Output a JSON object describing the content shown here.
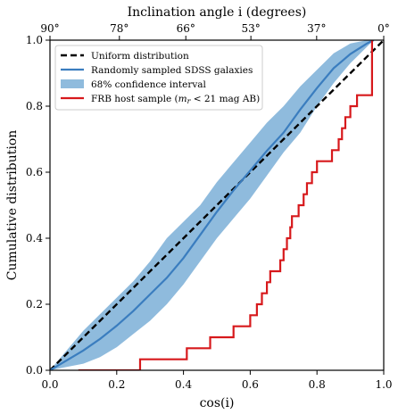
{
  "chart_data": {
    "type": "line",
    "xlabel": "cos(i)",
    "ylabel": "Cumulative distribution",
    "top_axis_label": "Inclination angle i (degrees)",
    "xlim": [
      0,
      1
    ],
    "ylim": [
      0,
      1
    ],
    "x_ticks": [
      0.0,
      0.2,
      0.4,
      0.6,
      0.8,
      1.0
    ],
    "x_tick_labels": [
      "0.0",
      "0.2",
      "0.4",
      "0.6",
      "0.8",
      "1.0"
    ],
    "y_ticks": [
      0.0,
      0.2,
      0.4,
      0.6,
      0.8,
      1.0
    ],
    "y_tick_labels": [
      "0.0",
      "0.2",
      "0.4",
      "0.6",
      "0.8",
      "1.0"
    ],
    "top_ticks": [
      {
        "cos": 0.0,
        "label": "90°"
      },
      {
        "cos": 0.208,
        "label": "78°"
      },
      {
        "cos": 0.407,
        "label": "66°"
      },
      {
        "cos": 0.602,
        "label": "53°"
      },
      {
        "cos": 0.799,
        "label": "37°"
      },
      {
        "cos": 1.0,
        "label": "0°"
      }
    ],
    "grid": false,
    "legend_position": "top-left",
    "series": [
      {
        "name": "Uniform distribution",
        "kind": "dashed-line",
        "color": "#000000",
        "x": [
          0,
          1
        ],
        "y": [
          0,
          1
        ]
      },
      {
        "name": "Randomly sampled SDSS galaxies",
        "kind": "line",
        "color": "#3a7dbf",
        "x": [
          0.0,
          0.05,
          0.1,
          0.15,
          0.2,
          0.25,
          0.3,
          0.35,
          0.4,
          0.45,
          0.5,
          0.55,
          0.6,
          0.65,
          0.7,
          0.75,
          0.8,
          0.85,
          0.9,
          0.95,
          0.97
        ],
        "y": [
          0.0,
          0.03,
          0.06,
          0.095,
          0.135,
          0.18,
          0.23,
          0.28,
          0.34,
          0.41,
          0.48,
          0.545,
          0.605,
          0.665,
          0.72,
          0.79,
          0.855,
          0.915,
          0.958,
          0.99,
          1.0
        ]
      },
      {
        "name": "68% confidence interval",
        "kind": "band",
        "color": "#8fbbdd",
        "x": [
          0.0,
          0.05,
          0.1,
          0.15,
          0.2,
          0.25,
          0.3,
          0.35,
          0.4,
          0.45,
          0.5,
          0.55,
          0.6,
          0.65,
          0.7,
          0.75,
          0.8,
          0.85,
          0.9,
          0.95,
          0.97
        ],
        "lower": [
          0.0,
          0.01,
          0.02,
          0.04,
          0.07,
          0.11,
          0.15,
          0.2,
          0.26,
          0.33,
          0.4,
          0.46,
          0.52,
          0.59,
          0.66,
          0.72,
          0.8,
          0.87,
          0.93,
          0.98,
          1.0
        ],
        "upper": [
          0.0,
          0.06,
          0.12,
          0.17,
          0.22,
          0.27,
          0.33,
          0.4,
          0.45,
          0.5,
          0.57,
          0.63,
          0.69,
          0.75,
          0.8,
          0.86,
          0.91,
          0.96,
          0.99,
          1.0,
          1.0
        ]
      },
      {
        "name": "FRB host sample (m_r < 21 mag AB)",
        "kind": "step",
        "color": "#d7191c",
        "x": [
          0.085,
          0.27,
          0.41,
          0.48,
          0.55,
          0.6,
          0.62,
          0.635,
          0.65,
          0.66,
          0.69,
          0.7,
          0.71,
          0.72,
          0.725,
          0.745,
          0.76,
          0.77,
          0.785,
          0.8,
          0.845,
          0.865,
          0.875,
          0.885,
          0.9,
          0.92,
          0.965
        ],
        "y": [
          0.0,
          0.0333,
          0.0667,
          0.1,
          0.1333,
          0.1667,
          0.2,
          0.2333,
          0.2667,
          0.3,
          0.3333,
          0.3667,
          0.4,
          0.4333,
          0.4667,
          0.5,
          0.5333,
          0.5667,
          0.6,
          0.6333,
          0.6667,
          0.7,
          0.7333,
          0.7667,
          0.8,
          0.8333,
          1.0
        ]
      }
    ],
    "legend": [
      {
        "label": "Uniform distribution"
      },
      {
        "label": "Randomly sampled SDSS galaxies"
      },
      {
        "label": "68% confidence interval"
      },
      {
        "label_prefix": "FRB host sample (",
        "label_sym": "m",
        "label_sub": "r",
        "label_suffix": " < 21 mag AB)"
      }
    ]
  }
}
